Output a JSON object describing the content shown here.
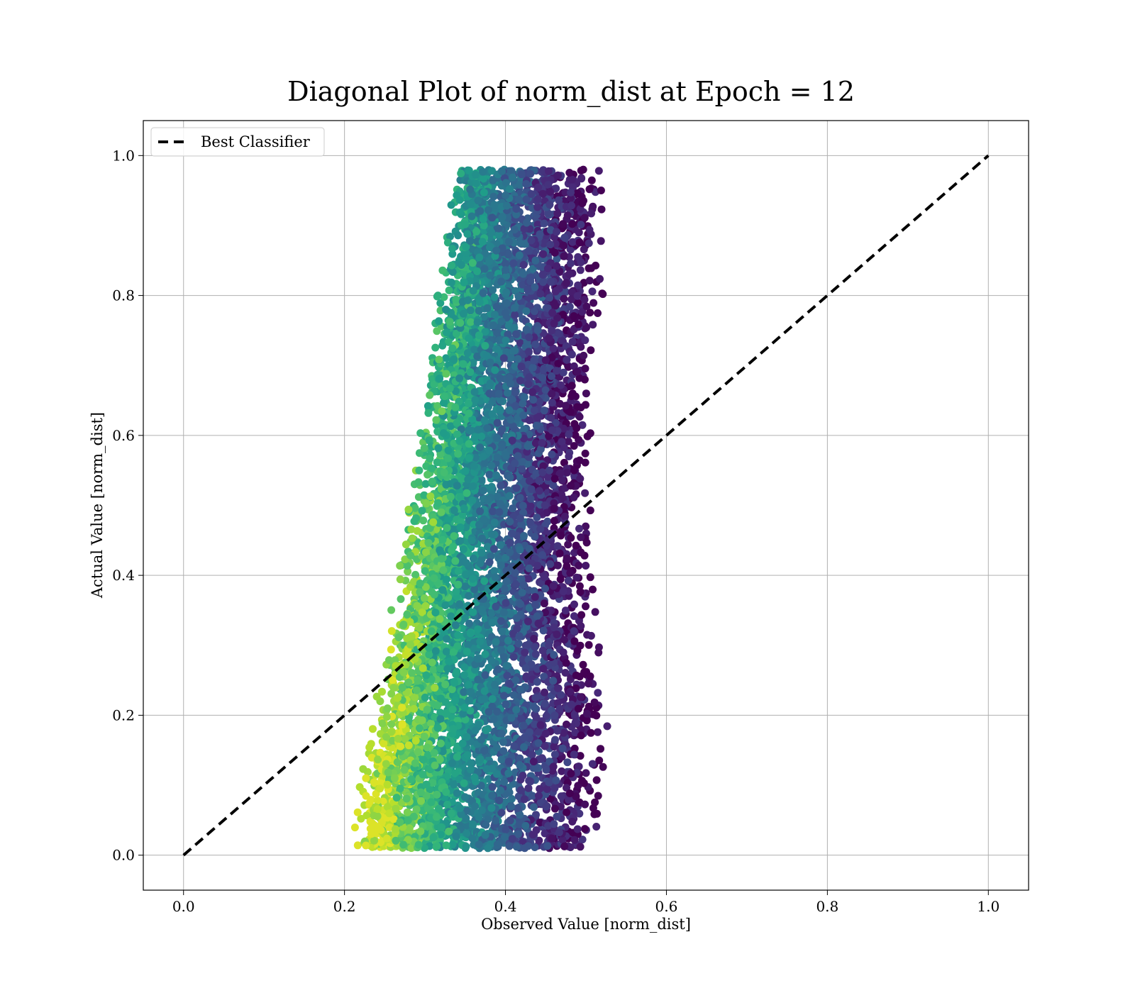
{
  "chart_data": {
    "type": "scatter",
    "title": "Diagonal Plot of norm_dist at Epoch = 12",
    "xlabel": "Observed Value [norm_dist]",
    "ylabel": "Actual Value [norm_dist]",
    "xlim": [
      -0.05,
      1.05
    ],
    "ylim": [
      -0.05,
      1.05
    ],
    "xticks": [
      "0.0",
      "0.2",
      "0.4",
      "0.6",
      "0.8",
      "1.0"
    ],
    "yticks": [
      "0.0",
      "0.2",
      "0.4",
      "0.6",
      "0.8",
      "1.0"
    ],
    "grid": true,
    "colormap": "viridis",
    "legend": {
      "placement": "upper-left",
      "entries": [
        "Best Classifier"
      ]
    },
    "series": [
      {
        "name": "Best Classifier",
        "kind": "dashed-line",
        "color": "#000000",
        "x": [
          0.0,
          1.0
        ],
        "y": [
          0.0,
          1.0
        ]
      }
    ],
    "scatter_density": [
      {
        "x": 0.23,
        "y": 0.1,
        "c": 0.9
      },
      {
        "x": 0.25,
        "y": 0.2,
        "c": 0.85
      },
      {
        "x": 0.27,
        "y": 0.3,
        "c": 0.75
      },
      {
        "x": 0.29,
        "y": 0.45,
        "c": 0.6
      },
      {
        "x": 0.3,
        "y": 0.1,
        "c": 0.7
      },
      {
        "x": 0.32,
        "y": 0.6,
        "c": 0.45
      },
      {
        "x": 0.34,
        "y": 0.25,
        "c": 0.55
      },
      {
        "x": 0.35,
        "y": 0.75,
        "c": 0.38
      },
      {
        "x": 0.37,
        "y": 0.5,
        "c": 0.4
      },
      {
        "x": 0.38,
        "y": 0.9,
        "c": 0.3
      },
      {
        "x": 0.4,
        "y": 0.2,
        "c": 0.35
      },
      {
        "x": 0.42,
        "y": 0.65,
        "c": 0.15
      },
      {
        "x": 0.44,
        "y": 0.95,
        "c": 0.08
      },
      {
        "x": 0.45,
        "y": 0.4,
        "c": 0.1
      },
      {
        "x": 0.47,
        "y": 0.8,
        "c": 0.12
      },
      {
        "x": 0.49,
        "y": 0.3,
        "c": 0.2
      },
      {
        "x": 0.5,
        "y": 0.6,
        "c": 0.25
      },
      {
        "x": 0.51,
        "y": 0.15,
        "c": 0.22
      }
    ]
  }
}
